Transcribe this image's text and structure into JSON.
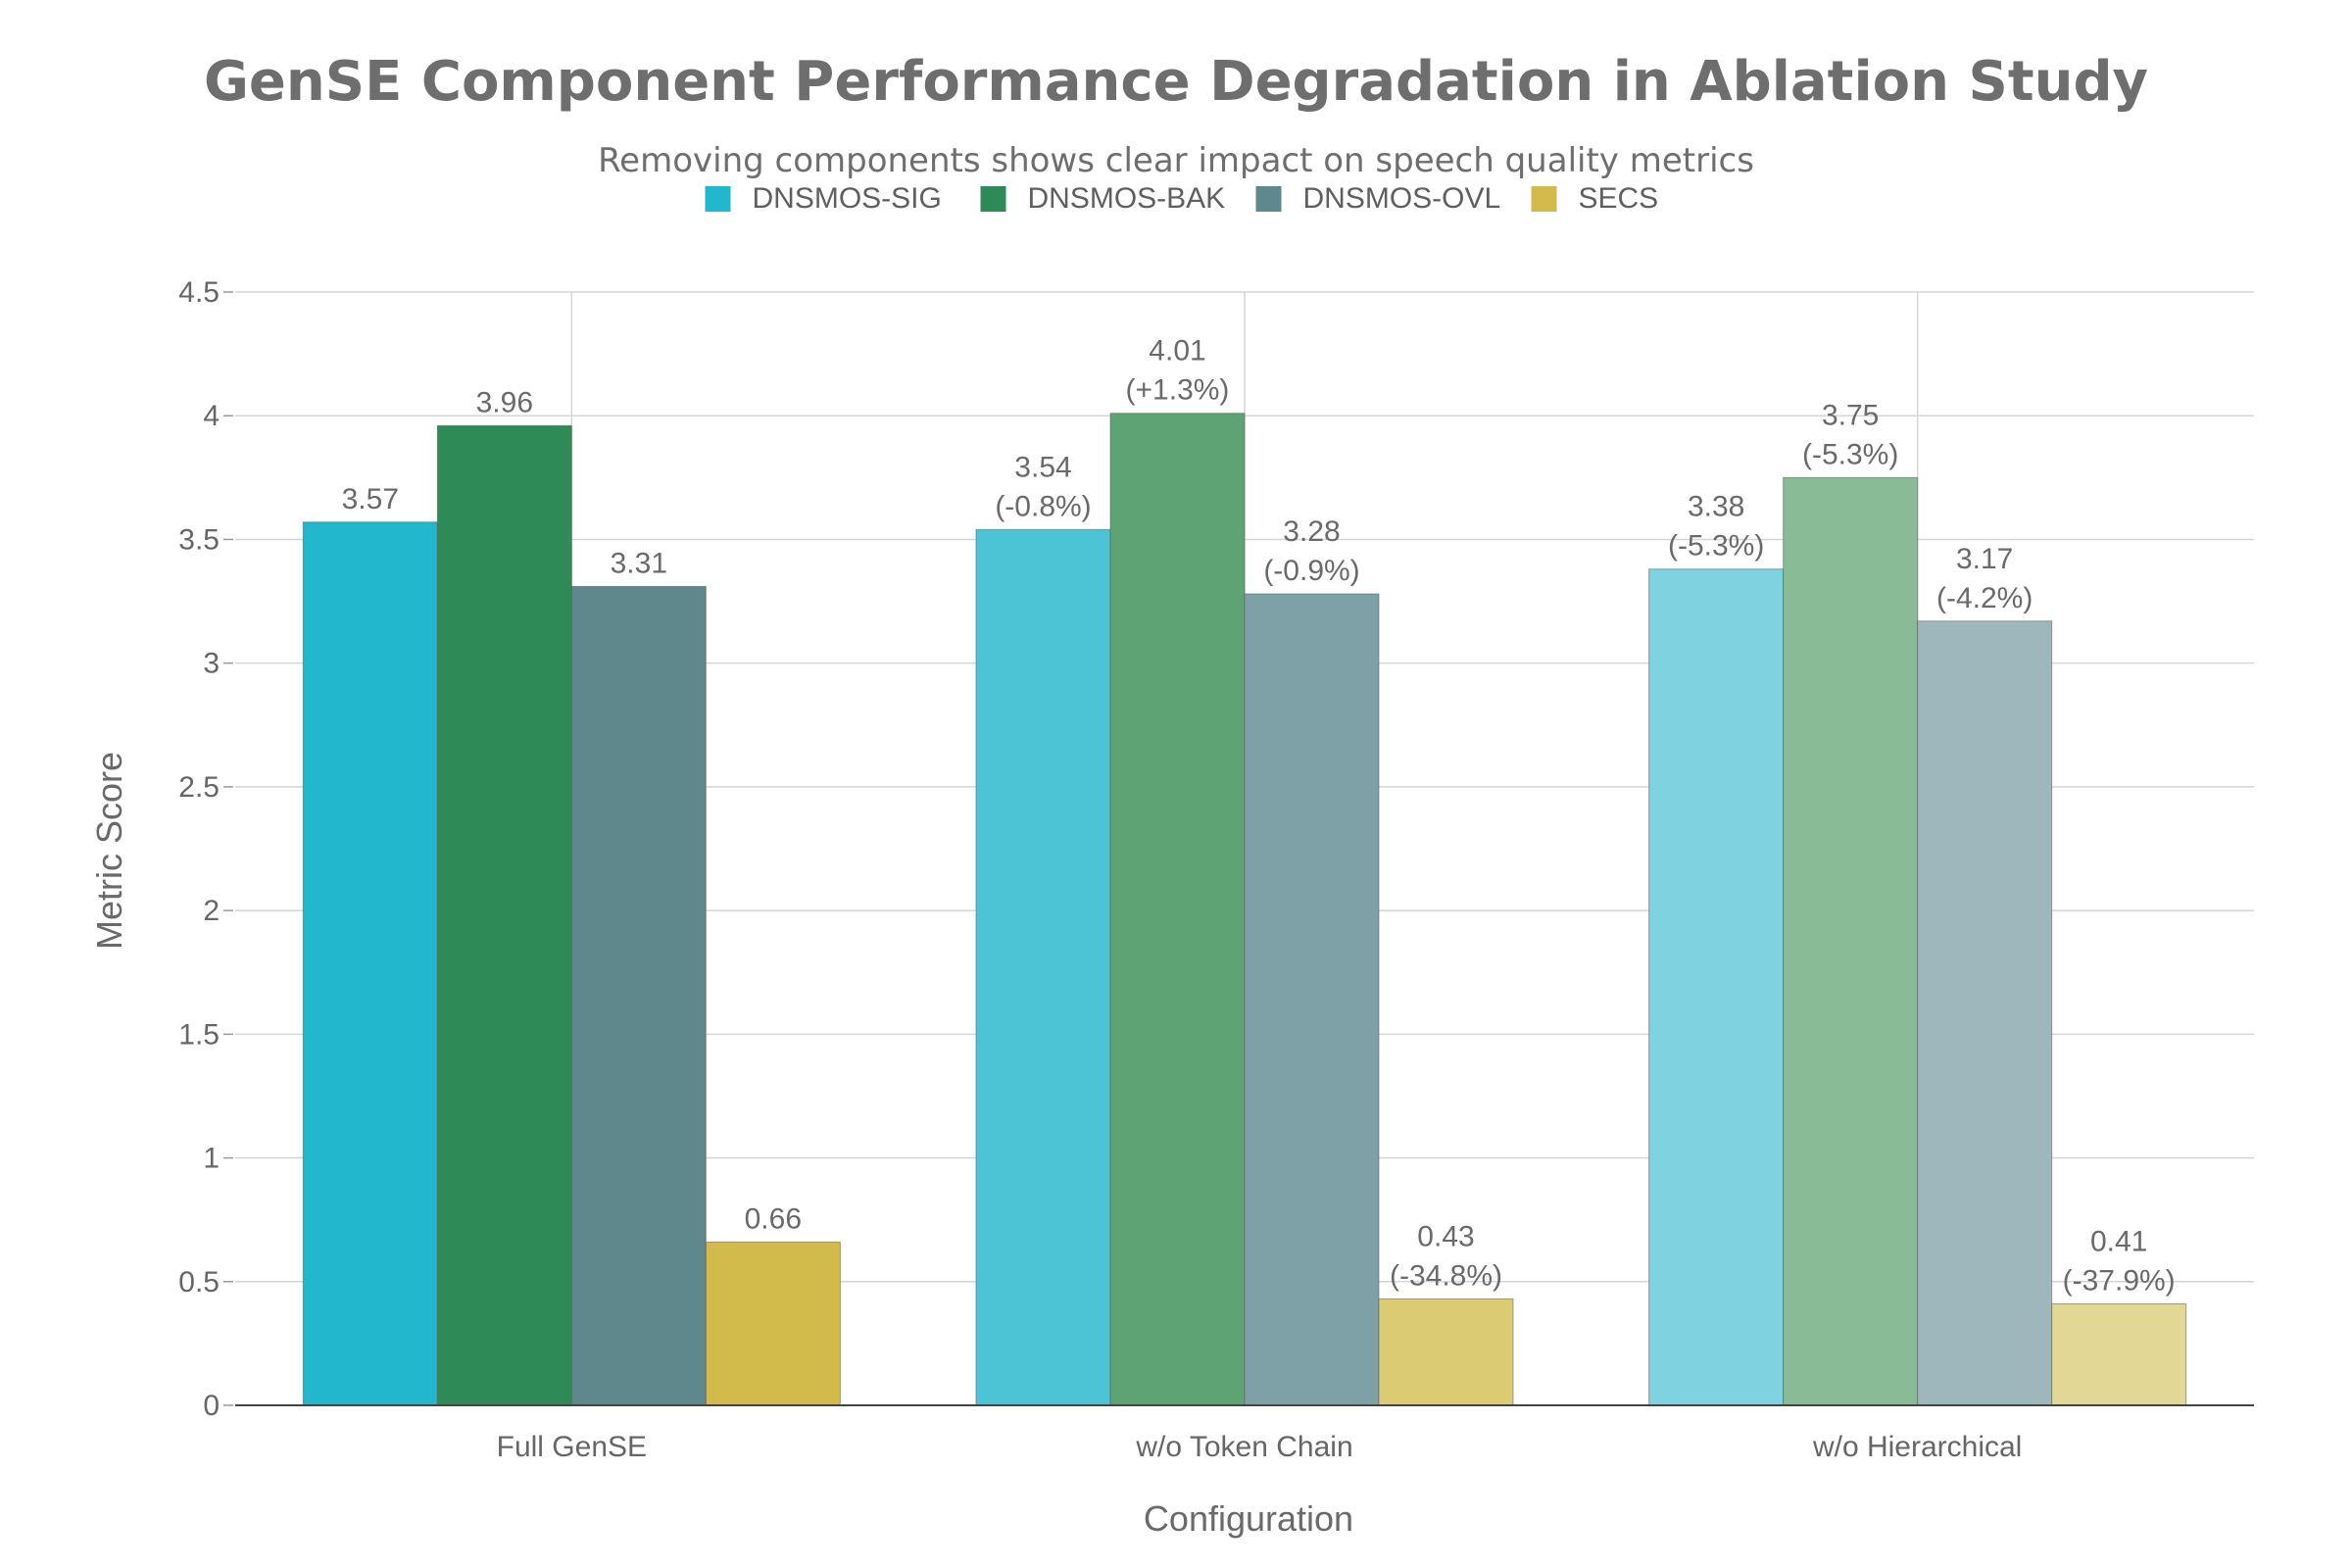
{
  "chart_data": {
    "type": "bar",
    "title": "GenSE Component Performance Degradation in Ablation Study",
    "subtitle": "Removing components shows clear impact on speech quality metrics",
    "xlabel": "Configuration",
    "ylabel": "Metric Score",
    "ylim": [
      0,
      4.5
    ],
    "yticks": [
      0,
      0.5,
      1,
      1.5,
      2,
      2.5,
      3,
      3.5,
      4,
      4.5
    ],
    "ytick_labels": [
      "0",
      "0.5",
      "1",
      "1.5",
      "2",
      "2.5",
      "3",
      "3.5",
      "4",
      "4.5"
    ],
    "categories": [
      "Full GenSE",
      "w/o Token Chain",
      "w/o Hierarchical"
    ],
    "legend_position": "top-center",
    "grid": true,
    "series": [
      {
        "name": "DNSMOS-SIG",
        "values": [
          3.57,
          3.54,
          3.38
        ],
        "colors": [
          "#21b8cd",
          "#4dc3d6",
          "#7fd3e0"
        ],
        "labels": [
          [
            "3.57"
          ],
          [
            "3.54",
            "(-0.8%)"
          ],
          [
            "3.38",
            "(-5.3%)"
          ]
        ]
      },
      {
        "name": "DNSMOS-BAK",
        "values": [
          3.96,
          4.01,
          3.75
        ],
        "colors": [
          "#2e8b57",
          "#5da374",
          "#88bb96"
        ],
        "labels": [
          [
            "3.96"
          ],
          [
            "4.01",
            "(+1.3%)"
          ],
          [
            "3.75",
            "(-5.3%)"
          ]
        ]
      },
      {
        "name": "DNSMOS-OVL",
        "values": [
          3.31,
          3.28,
          3.17
        ],
        "colors": [
          "#5f888d",
          "#7ea0a7",
          "#9eb7bd"
        ],
        "labels": [
          [
            "3.31"
          ],
          [
            "3.28",
            "(-0.9%)"
          ],
          [
            "3.17",
            "(-4.2%)"
          ]
        ]
      },
      {
        "name": "SECS",
        "values": [
          0.66,
          0.43,
          0.41
        ],
        "colors": [
          "#d3bb4b",
          "#dbcb72",
          "#e3d795"
        ],
        "labels": [
          [
            "0.66"
          ],
          [
            "0.43",
            "(-34.8%)"
          ],
          [
            "0.41",
            "(-37.9%)"
          ]
        ]
      }
    ]
  }
}
